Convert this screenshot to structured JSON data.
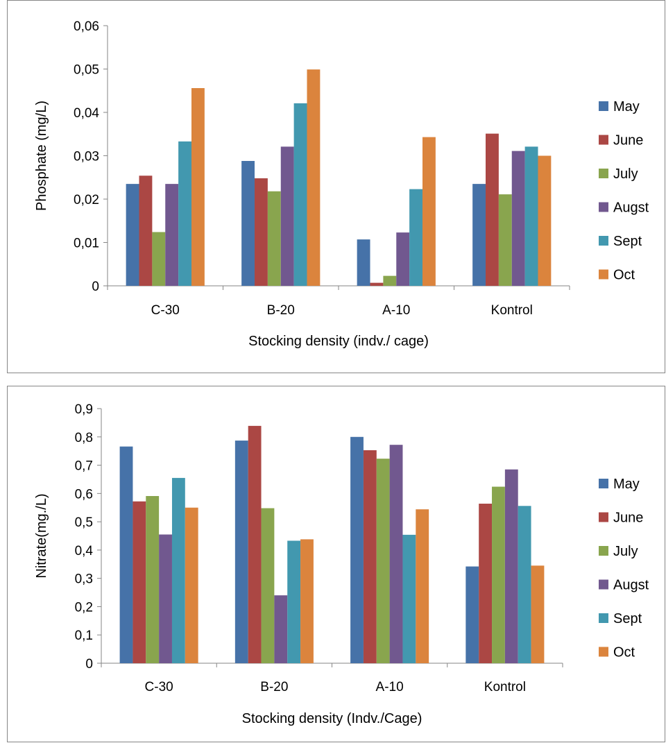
{
  "chart_data": [
    {
      "type": "bar",
      "title": "",
      "xlabel": "Stocking density (indv./ cage)",
      "ylabel": "Phosphate (mg/L)",
      "ylim": [
        0,
        0.06
      ],
      "yticks": [
        "0",
        "0,01",
        "0,02",
        "0,03",
        "0,04",
        "0,05",
        "0,06"
      ],
      "grid": false,
      "legend_position": "right",
      "categories": [
        "C-30",
        "B-20",
        "A-10",
        "Kontrol"
      ],
      "series": [
        {
          "name": "May",
          "color": "#4672a8",
          "values": [
            0.0235,
            0.0288,
            0.0107,
            0.0235
          ]
        },
        {
          "name": "June",
          "color": "#ab4744",
          "values": [
            0.0254,
            0.0248,
            0.0007,
            0.0351
          ]
        },
        {
          "name": "July",
          "color": "#89a54e",
          "values": [
            0.0124,
            0.0218,
            0.0023,
            0.0211
          ]
        },
        {
          "name": "Augst",
          "color": "#71588f",
          "values": [
            0.0235,
            0.0321,
            0.0123,
            0.0311
          ]
        },
        {
          "name": "Sept",
          "color": "#4298af",
          "values": [
            0.0333,
            0.0421,
            0.0223,
            0.0321
          ]
        },
        {
          "name": "Oct",
          "color": "#db843d",
          "values": [
            0.0456,
            0.0499,
            0.0343,
            0.03
          ]
        }
      ]
    },
    {
      "type": "bar",
      "title": "",
      "xlabel": "Stocking density (Indv./Cage)",
      "ylabel": "Nitrate(mg./L)",
      "ylim": [
        0,
        0.9
      ],
      "yticks": [
        "0",
        "0,1",
        "0,2",
        "0,3",
        "0,4",
        "0,5",
        "0,6",
        "0,7",
        "0,8",
        "0,9"
      ],
      "grid": false,
      "legend_position": "right",
      "categories": [
        "C-30",
        "B-20",
        "A-10",
        "Kontrol"
      ],
      "series": [
        {
          "name": "May",
          "color": "#4672a8",
          "values": [
            0.766,
            0.787,
            0.8,
            0.342
          ]
        },
        {
          "name": "June",
          "color": "#ab4744",
          "values": [
            0.572,
            0.839,
            0.753,
            0.564
          ]
        },
        {
          "name": "July",
          "color": "#89a54e",
          "values": [
            0.591,
            0.548,
            0.723,
            0.624
          ]
        },
        {
          "name": "Augst",
          "color": "#71588f",
          "values": [
            0.455,
            0.24,
            0.772,
            0.685
          ]
        },
        {
          "name": "Sept",
          "color": "#4298af",
          "values": [
            0.655,
            0.433,
            0.454,
            0.556
          ]
        },
        {
          "name": "Oct",
          "color": "#db843d",
          "values": [
            0.55,
            0.438,
            0.544,
            0.345
          ]
        }
      ]
    }
  ]
}
